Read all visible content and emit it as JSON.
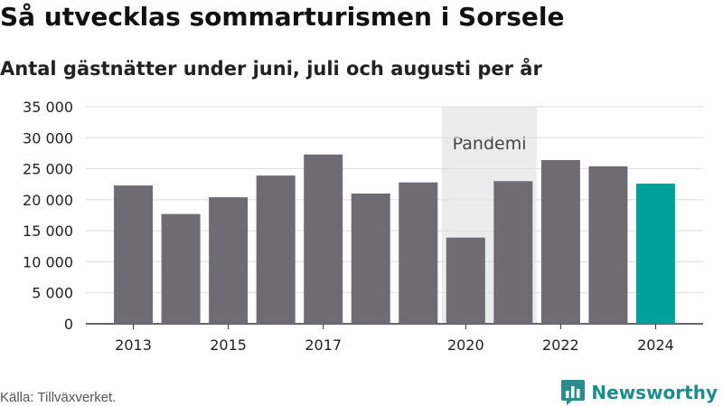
{
  "title": "Så utvecklas sommarturismen i Sorsele",
  "subtitle": "Antal gästnätter under juni, juli och augusti per år",
  "source": "Källa: Tillväxverket.",
  "brand": {
    "name": "Newsworthy",
    "icon": "bar-chart-speech-bubble-icon",
    "color": "#2a8c8c"
  },
  "colors": {
    "bar": "#6e6c72",
    "highlight": "#00a19a",
    "shade": "#ececec",
    "grid": "#dddddd",
    "axis": "#333333"
  },
  "chart_data": {
    "type": "bar",
    "title": "Så utvecklas sommarturismen i Sorsele",
    "subtitle": "Antal gästnätter under juni, juli och augusti per år",
    "categories": [
      "2013",
      "2014",
      "2015",
      "2016",
      "2017",
      "2018",
      "2019",
      "2020",
      "2021",
      "2022",
      "2023",
      "2024"
    ],
    "values": [
      22300,
      17700,
      20400,
      23900,
      27300,
      21000,
      22800,
      13900,
      23000,
      26400,
      25400,
      22600
    ],
    "highlight": [
      "2024"
    ],
    "x_tick_labels": [
      "2013",
      "2015",
      "2017",
      "2020",
      "2022",
      "2024"
    ],
    "ylim": [
      0,
      35000
    ],
    "y_ticks": [
      0,
      5000,
      10000,
      15000,
      20000,
      25000,
      30000,
      35000
    ],
    "y_tick_labels": [
      "0",
      "5 000",
      "10 000",
      "15 000",
      "20 000",
      "25 000",
      "30 000",
      "35 000"
    ],
    "grid": true,
    "annotations": [
      {
        "text": "Pandemi",
        "x_from": "2020",
        "x_to": "2021"
      }
    ],
    "xlabel": "",
    "ylabel": ""
  }
}
